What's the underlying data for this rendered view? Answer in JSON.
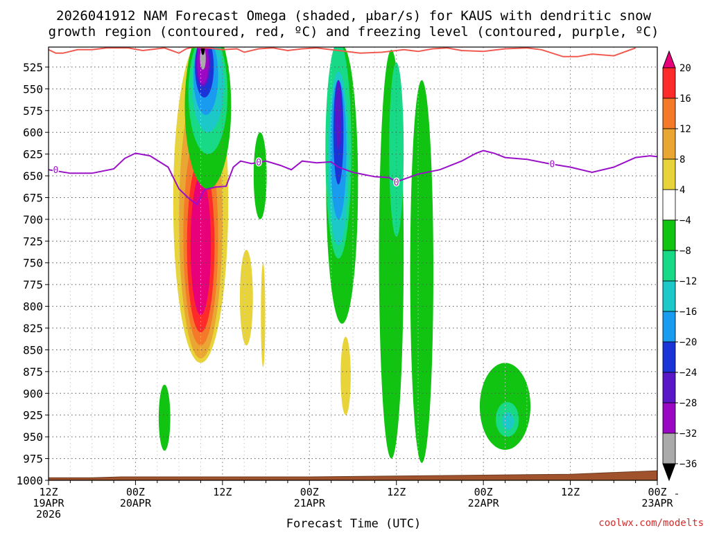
{
  "chart_data": {
    "type": "heatmap",
    "title_line1": "2026041912 NAM Forecast Omega (shaded, μbar/s) for KAUS with dendritic snow",
    "title_line2": "growth region (contoured, red, ºC) and freezing level (contoured, purple, ºC)",
    "xlabel": "Forecast Time (UTC)",
    "credit": "coolwx.com/modelts",
    "x_range_hours": [
      0,
      84
    ],
    "y_range_mb": [
      502,
      1000
    ],
    "y_ticks": [
      "525",
      "550",
      "575",
      "600",
      "625",
      "650",
      "675",
      "700",
      "725",
      "750",
      "775",
      "800",
      "825",
      "850",
      "875",
      "900",
      "925",
      "950",
      "975",
      "1000"
    ],
    "x_ticks": [
      {
        "hour": 0,
        "lines": [
          "12Z",
          "19APR",
          "2026"
        ]
      },
      {
        "hour": 12,
        "lines": [
          "00Z",
          "20APR"
        ]
      },
      {
        "hour": 24,
        "lines": [
          "12Z"
        ]
      },
      {
        "hour": 36,
        "lines": [
          "00Z",
          "21APR"
        ]
      },
      {
        "hour": 48,
        "lines": [
          "12Z"
        ]
      },
      {
        "hour": 60,
        "lines": [
          "00Z",
          "22APR"
        ]
      },
      {
        "hour": 72,
        "lines": [
          "12Z"
        ]
      },
      {
        "hour": 84,
        "lines": [
          "00Z",
          "23APR"
        ]
      }
    ],
    "colorbar": {
      "labels": [
        "20",
        "16",
        "12",
        "8",
        "4",
        "−4",
        "−8",
        "−12",
        "−16",
        "−20",
        "−24",
        "−28",
        "−32",
        "−36"
      ],
      "colors": [
        "#e8007a",
        "#ff2a2a",
        "#f47a2a",
        "#e9a633",
        "#e8d43a",
        "#ffffff",
        "#12c412",
        "#18d986",
        "#1cc8c8",
        "#199cf0",
        "#1a34d8",
        "#5a17c8",
        "#9b08c4",
        "#aaaaaa",
        "#000000"
      ]
    },
    "colors": {
      "freezing_level": "#9a10c8",
      "dgz": "#f05a50",
      "ground": "#a0522d"
    },
    "freezing_level_mb": [
      [
        0,
        643
      ],
      [
        3,
        647
      ],
      [
        6,
        647
      ],
      [
        9,
        642
      ],
      [
        10.5,
        630
      ],
      [
        12,
        624
      ],
      [
        14,
        627
      ],
      [
        16.5,
        640
      ],
      [
        18,
        665
      ],
      [
        19.5,
        677
      ],
      [
        20.5,
        683
      ],
      [
        21.5,
        666
      ],
      [
        23,
        663
      ],
      [
        24.5,
        662
      ],
      [
        25.5,
        640
      ],
      [
        26.5,
        633
      ],
      [
        28,
        636
      ],
      [
        30,
        633
      ],
      [
        32,
        638
      ],
      [
        33.5,
        643
      ],
      [
        35,
        633
      ],
      [
        37,
        635
      ],
      [
        39,
        634
      ],
      [
        40,
        640
      ],
      [
        42,
        646
      ],
      [
        45,
        651
      ],
      [
        47,
        652
      ],
      [
        48,
        657
      ],
      [
        51,
        648
      ],
      [
        54,
        643
      ],
      [
        57,
        633
      ],
      [
        59,
        624
      ],
      [
        60,
        621
      ],
      [
        61.5,
        624
      ],
      [
        63,
        629
      ],
      [
        66,
        631
      ],
      [
        69,
        636
      ],
      [
        72,
        640
      ],
      [
        75,
        646
      ],
      [
        78,
        640
      ],
      [
        81,
        629
      ],
      [
        83,
        627
      ],
      [
        84,
        628
      ]
    ],
    "freezing_level_labels": [
      {
        "x": 1,
        "p": 643,
        "text": "0"
      },
      {
        "x": 29,
        "p": 634,
        "text": "0"
      },
      {
        "x": 48,
        "p": 657,
        "text": "0"
      },
      {
        "x": 69.5,
        "p": 636,
        "text": "0"
      }
    ],
    "dgz_mb": [
      [
        0,
        505
      ],
      [
        1,
        509
      ],
      [
        2,
        509
      ],
      [
        4,
        505
      ],
      [
        6,
        505
      ],
      [
        8,
        503
      ],
      [
        11,
        503
      ],
      [
        13,
        506
      ],
      [
        15,
        504
      ],
      [
        16,
        503
      ],
      [
        17,
        506
      ],
      [
        18,
        509
      ],
      [
        19,
        504
      ],
      [
        20,
        502
      ],
      [
        22,
        503
      ],
      [
        24,
        505
      ],
      [
        26,
        504
      ],
      [
        27,
        508
      ],
      [
        29,
        504
      ],
      [
        31,
        503
      ],
      [
        33,
        506
      ],
      [
        35,
        504
      ],
      [
        37,
        503
      ],
      [
        40,
        506
      ],
      [
        43,
        509
      ],
      [
        46,
        508
      ],
      [
        49,
        505
      ],
      [
        51,
        507
      ],
      [
        53,
        504
      ],
      [
        55,
        503
      ],
      [
        57,
        506
      ],
      [
        60,
        507
      ],
      [
        63,
        504
      ],
      [
        66,
        503
      ],
      [
        68,
        505
      ],
      [
        71,
        513
      ],
      [
        73,
        513
      ],
      [
        75,
        510
      ],
      [
        78,
        512
      ],
      [
        80,
        506
      ],
      [
        81,
        503
      ]
    ],
    "omega_regions": [
      {
        "level": "4 to 8",
        "color": "#e8d43a",
        "cx": 21,
        "cp": 680,
        "rx": 3.8,
        "rp": 185
      },
      {
        "level": "8 to 12",
        "color": "#e9a633",
        "cx": 21,
        "cp": 700,
        "rx": 3.0,
        "rp": 160
      },
      {
        "level": "12 to 16",
        "color": "#f47a2a",
        "cx": 21,
        "cp": 720,
        "rx": 2.4,
        "rp": 125
      },
      {
        "level": "16 to 20",
        "color": "#ff2a2a",
        "cx": 21,
        "cp": 730,
        "rx": 1.9,
        "rp": 100
      },
      {
        "level": ">20",
        "color": "#e8007a",
        "cx": 21,
        "cp": 730,
        "rx": 1.4,
        "rp": 80
      },
      {
        "level": "4 to 8",
        "color": "#e8d43a",
        "cx": 27.3,
        "cp": 790,
        "rx": 0.9,
        "rp": 55
      },
      {
        "level": "4 to 8",
        "color": "#e8d43a",
        "cx": 29.6,
        "cp": 810,
        "rx": 0.3,
        "rp": 60
      },
      {
        "level": "4 to 8",
        "color": "#e8d43a",
        "cx": 41,
        "cp": 880,
        "rx": 0.7,
        "rp": 45
      },
      {
        "level": "-4 to -8",
        "color": "#12c412",
        "cx": 22,
        "cp": 570,
        "rx": 3.2,
        "rp": 95
      },
      {
        "level": "-8 to -12",
        "color": "#18d986",
        "cx": 22,
        "cp": 555,
        "rx": 2.7,
        "rp": 70
      },
      {
        "level": "-12 to -16",
        "color": "#1cc8c8",
        "cx": 22,
        "cp": 545,
        "rx": 2.2,
        "rp": 55
      },
      {
        "level": "-16 to -20",
        "color": "#199cf0",
        "cx": 21.7,
        "cp": 535,
        "rx": 1.7,
        "rp": 45
      },
      {
        "level": "-20 to -24",
        "color": "#1a34d8",
        "cx": 21.5,
        "cp": 525,
        "rx": 1.3,
        "rp": 35
      },
      {
        "level": "-24 to -28",
        "color": "#5a17c8",
        "cx": 21.3,
        "cp": 520,
        "rx": 1.0,
        "rp": 28
      },
      {
        "level": "-28 to -32",
        "color": "#9b08c4",
        "cx": 21.3,
        "cp": 520,
        "rx": 0.8,
        "rp": 25
      },
      {
        "level": "-32 to -36",
        "color": "#aaaaaa",
        "cx": 21.3,
        "cp": 515,
        "rx": 0.4,
        "rp": 13
      },
      {
        "level": "<-36",
        "color": "#000000",
        "cx": 21.3,
        "cp": 505,
        "rx": 0.25,
        "rp": 6
      },
      {
        "level": "-4 to -8",
        "color": "#12c412",
        "cx": 29.2,
        "cp": 650,
        "rx": 0.9,
        "rp": 50
      },
      {
        "level": "-4 to -8",
        "color": "#12c412",
        "cx": 16,
        "cp": 928,
        "rx": 0.8,
        "rp": 38
      },
      {
        "level": "-4 to -8",
        "color": "#12c412",
        "cx": 40.5,
        "cp": 660,
        "rx": 2.2,
        "rp": 160
      },
      {
        "level": "-8 to -12",
        "color": "#18d986",
        "cx": 40,
        "cp": 620,
        "rx": 1.8,
        "rp": 125
      },
      {
        "level": "-12 to -16",
        "color": "#1cc8c8",
        "cx": 40,
        "cp": 630,
        "rx": 1.4,
        "rp": 100
      },
      {
        "level": "-16 to -20",
        "color": "#199cf0",
        "cx": 40,
        "cp": 620,
        "rx": 1.1,
        "rp": 80
      },
      {
        "level": "-20 to -24",
        "color": "#1a34d8",
        "cx": 40,
        "cp": 600,
        "rx": 0.7,
        "rp": 60
      },
      {
        "level": "-24 to -28",
        "color": "#5a17c8",
        "cx": 40,
        "cp": 580,
        "rx": 0.4,
        "rp": 40
      },
      {
        "level": "-4 to -8",
        "color": "#12c412",
        "cx": 47.3,
        "cp": 740,
        "rx": 1.7,
        "rp": 235
      },
      {
        "level": "-8 to -12",
        "color": "#18d986",
        "cx": 48,
        "cp": 620,
        "rx": 1.0,
        "rp": 100
      },
      {
        "level": "-4 to -8",
        "color": "#12c412",
        "cx": 51.5,
        "cp": 760,
        "rx": 1.6,
        "rp": 220
      },
      {
        "level": "-4 to -8",
        "color": "#12c412",
        "cx": 63,
        "cp": 915,
        "rx": 3.5,
        "rp": 50
      },
      {
        "level": "-8 to -12",
        "color": "#18d986",
        "cx": 63.3,
        "cp": 930,
        "rx": 1.6,
        "rp": 20
      },
      {
        "level": "-12 to -16",
        "color": "#1cc8c8",
        "cx": 63.4,
        "cp": 932,
        "rx": 0.8,
        "rp": 10
      }
    ]
  }
}
